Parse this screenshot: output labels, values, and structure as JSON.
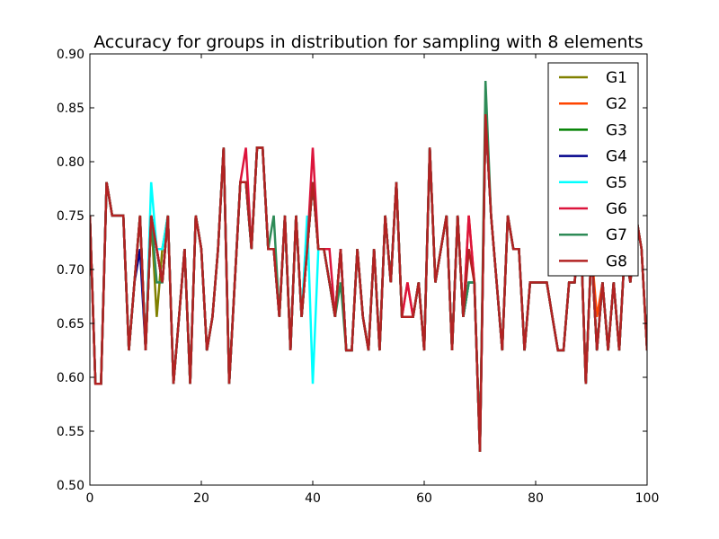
{
  "chart_data": {
    "type": "line",
    "title": "Accuracy for groups in distribution for sampling with 8 elements",
    "xlabel": "",
    "ylabel": "",
    "xlim": [
      0,
      100
    ],
    "ylim": [
      0.5,
      0.9
    ],
    "x_ticks": [
      0,
      20,
      40,
      60,
      80,
      100
    ],
    "y_ticks": [
      0.5,
      0.55,
      0.6,
      0.65,
      0.7,
      0.75,
      0.8,
      0.85,
      0.9
    ],
    "grid": false,
    "legend_position": "top-right",
    "x": [
      0,
      1,
      2,
      3,
      4,
      5,
      6,
      7,
      8,
      9,
      10,
      11,
      12,
      13,
      14,
      15,
      16,
      17,
      18,
      19,
      20,
      21,
      22,
      23,
      24,
      25,
      26,
      27,
      28,
      29,
      30,
      31,
      32,
      33,
      34,
      35,
      36,
      37,
      38,
      39,
      40,
      41,
      42,
      43,
      44,
      45,
      46,
      47,
      48,
      49,
      50,
      51,
      52,
      53,
      54,
      55,
      56,
      57,
      58,
      59,
      60,
      61,
      62,
      63,
      64,
      65,
      66,
      67,
      68,
      69,
      70,
      71,
      72,
      73,
      74,
      75,
      76,
      77,
      78,
      79,
      80,
      81,
      82,
      83,
      84,
      85,
      86,
      87,
      88,
      89,
      90,
      91,
      92,
      93,
      94,
      95,
      96,
      97,
      98,
      99,
      100
    ],
    "series": [
      {
        "name": "G1",
        "color": "#808000",
        "values": [
          0.75,
          0.594,
          0.594,
          0.781,
          0.75,
          0.75,
          0.75,
          0.625,
          0.688,
          0.75,
          0.625,
          0.75,
          0.656,
          0.719,
          0.75,
          0.594,
          0.656,
          0.719,
          0.594,
          0.75,
          0.719,
          0.625,
          0.656,
          0.719,
          0.813,
          0.594,
          0.688,
          0.781,
          0.781,
          0.719,
          0.813,
          0.813,
          0.719,
          0.719,
          0.656,
          0.75,
          0.625,
          0.75,
          0.656,
          0.719,
          0.781,
          0.719,
          0.719,
          0.688,
          0.656,
          0.719,
          0.625,
          0.625,
          0.719,
          0.656,
          0.625,
          0.719,
          0.625,
          0.75,
          0.688,
          0.781,
          0.656,
          0.656,
          0.656,
          0.688,
          0.625,
          0.813,
          0.688,
          0.719,
          0.75,
          0.625,
          0.75,
          0.656,
          0.688,
          0.688,
          0.531,
          0.844,
          0.75,
          0.688,
          0.625,
          0.75,
          0.719,
          0.719,
          0.625,
          0.688,
          0.688,
          0.688,
          0.688,
          0.656,
          0.625,
          0.625,
          0.688,
          0.688,
          0.75,
          0.594,
          0.719,
          0.625,
          0.688,
          0.625,
          0.688,
          0.625,
          0.719,
          0.688,
          0.75,
          0.719,
          0.625
        ]
      },
      {
        "name": "G2",
        "color": "#ff4500",
        "values": [
          0.75,
          0.594,
          0.594,
          0.781,
          0.75,
          0.75,
          0.75,
          0.625,
          0.688,
          0.75,
          0.625,
          0.75,
          0.719,
          0.688,
          0.75,
          0.594,
          0.656,
          0.719,
          0.594,
          0.75,
          0.719,
          0.625,
          0.656,
          0.719,
          0.813,
          0.594,
          0.688,
          0.781,
          0.781,
          0.719,
          0.813,
          0.813,
          0.719,
          0.719,
          0.656,
          0.75,
          0.625,
          0.75,
          0.656,
          0.719,
          0.781,
          0.719,
          0.719,
          0.688,
          0.656,
          0.719,
          0.625,
          0.625,
          0.719,
          0.656,
          0.625,
          0.719,
          0.625,
          0.75,
          0.688,
          0.781,
          0.656,
          0.688,
          0.656,
          0.688,
          0.625,
          0.813,
          0.688,
          0.719,
          0.75,
          0.625,
          0.75,
          0.656,
          0.75,
          0.688,
          0.531,
          0.844,
          0.75,
          0.688,
          0.625,
          0.75,
          0.719,
          0.719,
          0.625,
          0.688,
          0.688,
          0.688,
          0.688,
          0.656,
          0.625,
          0.625,
          0.688,
          0.688,
          0.75,
          0.594,
          0.719,
          0.656,
          0.688,
          0.625,
          0.688,
          0.625,
          0.719,
          0.688,
          0.75,
          0.719,
          0.625
        ]
      },
      {
        "name": "G3",
        "color": "#008000",
        "values": [
          0.75,
          0.594,
          0.594,
          0.781,
          0.75,
          0.75,
          0.75,
          0.625,
          0.688,
          0.75,
          0.625,
          0.75,
          0.719,
          0.688,
          0.75,
          0.594,
          0.656,
          0.719,
          0.594,
          0.75,
          0.719,
          0.625,
          0.656,
          0.719,
          0.813,
          0.594,
          0.688,
          0.781,
          0.781,
          0.719,
          0.813,
          0.813,
          0.719,
          0.719,
          0.656,
          0.75,
          0.625,
          0.75,
          0.656,
          0.719,
          0.781,
          0.719,
          0.719,
          0.688,
          0.656,
          0.719,
          0.625,
          0.625,
          0.719,
          0.656,
          0.625,
          0.719,
          0.625,
          0.75,
          0.688,
          0.781,
          0.656,
          0.656,
          0.656,
          0.688,
          0.625,
          0.813,
          0.688,
          0.719,
          0.75,
          0.625,
          0.75,
          0.656,
          0.688,
          0.688,
          0.531,
          0.844,
          0.75,
          0.688,
          0.625,
          0.75,
          0.719,
          0.719,
          0.625,
          0.688,
          0.688,
          0.688,
          0.688,
          0.656,
          0.625,
          0.625,
          0.688,
          0.688,
          0.75,
          0.594,
          0.719,
          0.625,
          0.688,
          0.625,
          0.688,
          0.625,
          0.719,
          0.688,
          0.75,
          0.719,
          0.625
        ]
      },
      {
        "name": "G4",
        "color": "#00008b",
        "values": [
          0.75,
          0.594,
          0.594,
          0.781,
          0.75,
          0.75,
          0.75,
          0.625,
          0.688,
          0.719,
          0.625,
          0.75,
          0.719,
          0.688,
          0.75,
          0.594,
          0.656,
          0.719,
          0.594,
          0.75,
          0.719,
          0.625,
          0.656,
          0.719,
          0.813,
          0.594,
          0.688,
          0.781,
          0.781,
          0.719,
          0.813,
          0.813,
          0.719,
          0.719,
          0.656,
          0.75,
          0.625,
          0.75,
          0.656,
          0.719,
          0.781,
          0.719,
          0.719,
          0.688,
          0.656,
          0.719,
          0.625,
          0.625,
          0.719,
          0.656,
          0.625,
          0.719,
          0.625,
          0.75,
          0.688,
          0.781,
          0.656,
          0.656,
          0.656,
          0.688,
          0.625,
          0.813,
          0.688,
          0.719,
          0.75,
          0.625,
          0.75,
          0.656,
          0.688,
          0.688,
          0.531,
          0.844,
          0.75,
          0.688,
          0.625,
          0.75,
          0.719,
          0.719,
          0.625,
          0.688,
          0.688,
          0.688,
          0.688,
          0.656,
          0.625,
          0.625,
          0.688,
          0.688,
          0.75,
          0.594,
          0.719,
          0.625,
          0.688,
          0.625,
          0.688,
          0.625,
          0.719,
          0.688,
          0.75,
          0.719,
          0.625
        ]
      },
      {
        "name": "G5",
        "color": "#00ffff",
        "values": [
          0.75,
          0.594,
          0.594,
          0.781,
          0.75,
          0.75,
          0.75,
          0.625,
          0.688,
          0.75,
          0.625,
          0.781,
          0.719,
          0.719,
          0.75,
          0.594,
          0.656,
          0.719,
          0.594,
          0.75,
          0.719,
          0.625,
          0.656,
          0.719,
          0.813,
          0.594,
          0.688,
          0.781,
          0.781,
          0.719,
          0.813,
          0.813,
          0.719,
          0.719,
          0.656,
          0.75,
          0.625,
          0.75,
          0.656,
          0.75,
          0.594,
          0.719,
          0.719,
          0.688,
          0.656,
          0.719,
          0.625,
          0.625,
          0.719,
          0.656,
          0.625,
          0.719,
          0.625,
          0.75,
          0.688,
          0.781,
          0.656,
          0.656,
          0.656,
          0.688,
          0.625,
          0.813,
          0.688,
          0.719,
          0.75,
          0.625,
          0.75,
          0.656,
          0.688,
          0.688,
          0.531,
          0.844,
          0.75,
          0.688,
          0.625,
          0.75,
          0.719,
          0.719,
          0.625,
          0.688,
          0.688,
          0.688,
          0.688,
          0.656,
          0.625,
          0.625,
          0.688,
          0.688,
          0.75,
          0.594,
          0.719,
          0.625,
          0.688,
          0.625,
          0.688,
          0.625,
          0.719,
          0.688,
          0.75,
          0.719,
          0.625
        ]
      },
      {
        "name": "G6",
        "color": "#dc143c",
        "values": [
          0.75,
          0.594,
          0.594,
          0.781,
          0.75,
          0.75,
          0.75,
          0.625,
          0.688,
          0.75,
          0.625,
          0.75,
          0.719,
          0.688,
          0.75,
          0.594,
          0.656,
          0.719,
          0.594,
          0.75,
          0.719,
          0.625,
          0.656,
          0.719,
          0.813,
          0.594,
          0.688,
          0.781,
          0.813,
          0.719,
          0.813,
          0.813,
          0.719,
          0.719,
          0.656,
          0.75,
          0.625,
          0.75,
          0.656,
          0.719,
          0.813,
          0.719,
          0.719,
          0.719,
          0.656,
          0.719,
          0.625,
          0.625,
          0.719,
          0.656,
          0.625,
          0.719,
          0.625,
          0.75,
          0.688,
          0.781,
          0.656,
          0.688,
          0.656,
          0.688,
          0.625,
          0.813,
          0.688,
          0.719,
          0.75,
          0.625,
          0.75,
          0.656,
          0.75,
          0.688,
          0.531,
          0.844,
          0.75,
          0.688,
          0.625,
          0.75,
          0.719,
          0.719,
          0.625,
          0.688,
          0.688,
          0.688,
          0.688,
          0.656,
          0.625,
          0.625,
          0.688,
          0.688,
          0.75,
          0.594,
          0.719,
          0.625,
          0.688,
          0.625,
          0.688,
          0.625,
          0.719,
          0.688,
          0.75,
          0.719,
          0.625
        ]
      },
      {
        "name": "G7",
        "color": "#2e8b57",
        "values": [
          0.75,
          0.594,
          0.594,
          0.781,
          0.75,
          0.75,
          0.75,
          0.625,
          0.688,
          0.75,
          0.625,
          0.75,
          0.688,
          0.688,
          0.75,
          0.594,
          0.656,
          0.719,
          0.594,
          0.75,
          0.719,
          0.625,
          0.656,
          0.719,
          0.813,
          0.594,
          0.688,
          0.781,
          0.781,
          0.719,
          0.813,
          0.813,
          0.719,
          0.75,
          0.656,
          0.75,
          0.625,
          0.75,
          0.656,
          0.719,
          0.781,
          0.719,
          0.719,
          0.688,
          0.656,
          0.688,
          0.625,
          0.625,
          0.719,
          0.656,
          0.625,
          0.719,
          0.625,
          0.75,
          0.688,
          0.781,
          0.656,
          0.656,
          0.656,
          0.688,
          0.625,
          0.813,
          0.688,
          0.719,
          0.75,
          0.625,
          0.75,
          0.656,
          0.688,
          0.688,
          0.531,
          0.875,
          0.75,
          0.688,
          0.625,
          0.75,
          0.719,
          0.719,
          0.625,
          0.688,
          0.688,
          0.688,
          0.688,
          0.656,
          0.625,
          0.625,
          0.688,
          0.688,
          0.75,
          0.594,
          0.719,
          0.625,
          0.688,
          0.625,
          0.688,
          0.625,
          0.719,
          0.688,
          0.75,
          0.719,
          0.625
        ]
      },
      {
        "name": "G8",
        "color": "#b22222",
        "values": [
          0.75,
          0.594,
          0.594,
          0.781,
          0.75,
          0.75,
          0.75,
          0.625,
          0.688,
          0.75,
          0.625,
          0.75,
          0.719,
          0.688,
          0.75,
          0.594,
          0.656,
          0.719,
          0.594,
          0.75,
          0.719,
          0.625,
          0.656,
          0.719,
          0.813,
          0.594,
          0.688,
          0.781,
          0.781,
          0.719,
          0.813,
          0.813,
          0.719,
          0.719,
          0.656,
          0.75,
          0.625,
          0.75,
          0.656,
          0.719,
          0.781,
          0.719,
          0.719,
          0.688,
          0.656,
          0.719,
          0.625,
          0.625,
          0.719,
          0.656,
          0.625,
          0.719,
          0.625,
          0.75,
          0.688,
          0.781,
          0.656,
          0.656,
          0.656,
          0.688,
          0.625,
          0.813,
          0.688,
          0.719,
          0.75,
          0.625,
          0.75,
          0.656,
          0.719,
          0.688,
          0.531,
          0.844,
          0.75,
          0.688,
          0.625,
          0.75,
          0.719,
          0.719,
          0.625,
          0.688,
          0.688,
          0.688,
          0.688,
          0.656,
          0.625,
          0.625,
          0.688,
          0.688,
          0.75,
          0.594,
          0.719,
          0.625,
          0.688,
          0.625,
          0.688,
          0.625,
          0.719,
          0.688,
          0.75,
          0.719,
          0.625
        ]
      }
    ]
  }
}
